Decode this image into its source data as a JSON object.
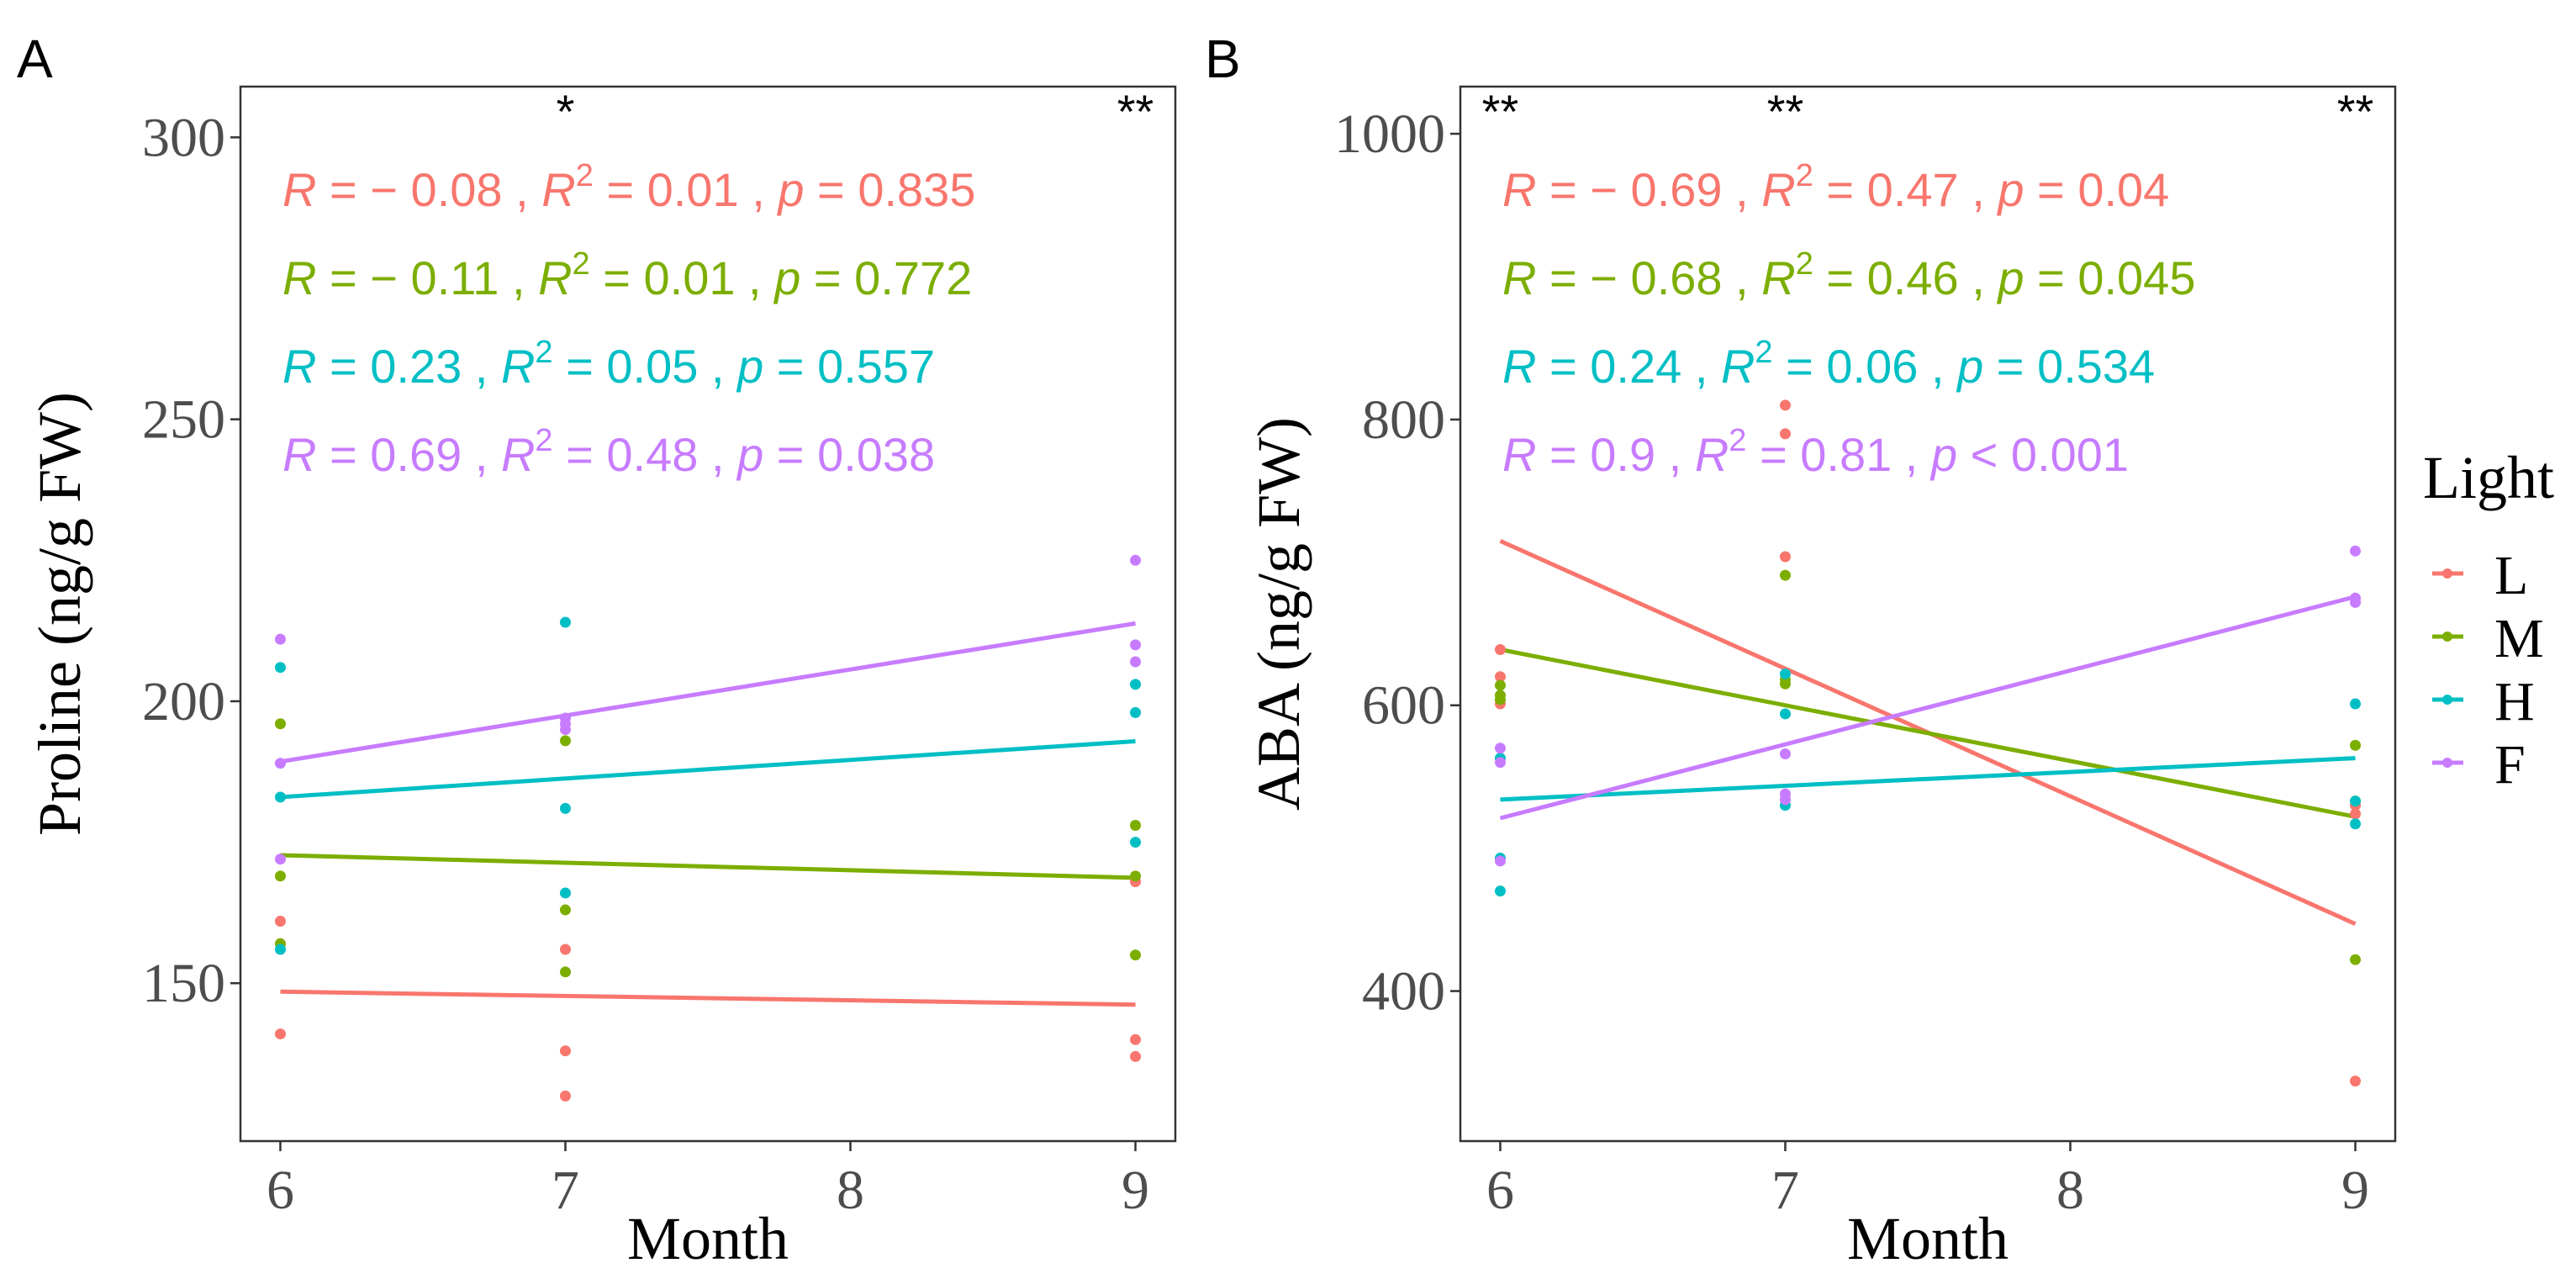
{
  "figure": {
    "legend": {
      "title": "Light",
      "items": [
        {
          "label": "L",
          "color": "#F8766D"
        },
        {
          "label": "M",
          "color": "#7CAE00"
        },
        {
          "label": "H",
          "color": "#00BFC4"
        },
        {
          "label": "F",
          "color": "#C77CFF"
        }
      ]
    }
  },
  "chart_data": [
    {
      "type": "scatter",
      "panel_label": "A",
      "xlabel": "Month",
      "ylabel": "Proline (ng/g FW)",
      "xlim": [
        5.86,
        9.14
      ],
      "ylim": [
        122,
        309
      ],
      "xticks": [
        6,
        7,
        8,
        9
      ],
      "yticks": [
        150,
        200,
        250,
        300
      ],
      "grid": false,
      "legend_position": "right",
      "significance": [
        {
          "x": 7,
          "label": "*"
        },
        {
          "x": 9,
          "label": "**"
        }
      ],
      "series": [
        {
          "name": "L",
          "color": "#F8766D",
          "points": [
            [
              6,
              161
            ],
            [
              6,
              157
            ],
            [
              6,
              141
            ],
            [
              7,
              156
            ],
            [
              7,
              138
            ],
            [
              7,
              130
            ],
            [
              9,
              168
            ],
            [
              9,
              140
            ],
            [
              9,
              137
            ]
          ],
          "fit": {
            "x": [
              6,
              9
            ],
            "y": [
              148.5,
              146.2
            ]
          },
          "stats": {
            "R": "− 0.08",
            "R2": "0.01",
            "p_op": "=",
            "p": "0.835"
          }
        },
        {
          "name": "M",
          "color": "#7CAE00",
          "points": [
            [
              6,
              196
            ],
            [
              6,
              169
            ],
            [
              6,
              157
            ],
            [
              7,
              193
            ],
            [
              7,
              163
            ],
            [
              7,
              152
            ],
            [
              9,
              178
            ],
            [
              9,
              169
            ],
            [
              9,
              155
            ]
          ],
          "fit": {
            "x": [
              6,
              9
            ],
            "y": [
              172.7,
              168.7
            ]
          },
          "stats": {
            "R": "− 0.11",
            "R2": "0.01",
            "p_op": "=",
            "p": "0.772"
          }
        },
        {
          "name": "H",
          "color": "#00BFC4",
          "points": [
            [
              6,
              206
            ],
            [
              6,
              183
            ],
            [
              6,
              156
            ],
            [
              7,
              214
            ],
            [
              7,
              181
            ],
            [
              7,
              166
            ],
            [
              9,
              203
            ],
            [
              9,
              198
            ],
            [
              9,
              175
            ]
          ],
          "fit": {
            "x": [
              6,
              9
            ],
            "y": [
              183.0,
              192.9
            ]
          },
          "stats": {
            "R": "0.23",
            "R2": "0.05",
            "p_op": "=",
            "p": "0.557"
          }
        },
        {
          "name": "F",
          "color": "#C77CFF",
          "points": [
            [
              6,
              211
            ],
            [
              6,
              189
            ],
            [
              6,
              172
            ],
            [
              7,
              197
            ],
            [
              7,
              196
            ],
            [
              7,
              195
            ],
            [
              9,
              225
            ],
            [
              9,
              210
            ],
            [
              9,
              207
            ]
          ],
          "fit": {
            "x": [
              6,
              9
            ],
            "y": [
              189.3,
              213.8
            ]
          },
          "stats": {
            "R": "0.69",
            "R2": "0.48",
            "p_op": "=",
            "p": "0.038"
          }
        }
      ]
    },
    {
      "type": "scatter",
      "panel_label": "B",
      "xlabel": "Month",
      "ylabel": "ABA (ng/g FW)",
      "xlim": [
        5.86,
        9.14
      ],
      "ylim": [
        295,
        1033
      ],
      "xticks": [
        6,
        7,
        8,
        9
      ],
      "yticks": [
        400,
        600,
        800,
        1000
      ],
      "grid": false,
      "legend_position": "right",
      "significance": [
        {
          "x": 6,
          "label": "**"
        },
        {
          "x": 7,
          "label": "**"
        },
        {
          "x": 9,
          "label": "**"
        }
      ],
      "series": [
        {
          "name": "L",
          "color": "#F8766D",
          "points": [
            [
              6,
              639
            ],
            [
              6,
              620
            ],
            [
              6,
              601
            ],
            [
              7,
              810
            ],
            [
              7,
              790
            ],
            [
              7,
              704
            ],
            [
              9,
              530
            ],
            [
              9,
              524
            ],
            [
              9,
              337
            ]
          ],
          "fit": {
            "x": [
              6,
              9
            ],
            "y": [
              715,
              447
            ]
          },
          "stats": {
            "R": "− 0.69",
            "R2": "0.47",
            "p_op": "=",
            "p": "0.04"
          }
        },
        {
          "name": "M",
          "color": "#7CAE00",
          "points": [
            [
              6,
              614
            ],
            [
              6,
              607
            ],
            [
              6,
              604
            ],
            [
              7,
              691
            ],
            [
              7,
              618
            ],
            [
              7,
              615
            ],
            [
              9,
              572
            ],
            [
              9,
              533
            ],
            [
              9,
              422
            ]
          ],
          "fit": {
            "x": [
              6,
              9
            ],
            "y": [
              639,
              522
            ]
          },
          "stats": {
            "R": "− 0.68",
            "R2": "0.46",
            "p_op": "=",
            "p": "0.045"
          }
        },
        {
          "name": "H",
          "color": "#00BFC4",
          "points": [
            [
              6,
              563
            ],
            [
              6,
              493
            ],
            [
              6,
              470
            ],
            [
              7,
              622
            ],
            [
              7,
              594
            ],
            [
              7,
              530
            ],
            [
              9,
              601
            ],
            [
              9,
              533
            ],
            [
              9,
              517
            ]
          ],
          "fit": {
            "x": [
              6,
              9
            ],
            "y": [
              534,
              563
            ]
          },
          "stats": {
            "R": "0.24",
            "R2": "0.06",
            "p_op": "=",
            "p": "0.534"
          }
        },
        {
          "name": "F",
          "color": "#C77CFF",
          "points": [
            [
              6,
              570
            ],
            [
              6,
              560
            ],
            [
              6,
              491
            ],
            [
              7,
              566
            ],
            [
              7,
              538
            ],
            [
              7,
              534
            ],
            [
              9,
              708
            ],
            [
              9,
              675
            ],
            [
              9,
              672
            ]
          ],
          "fit": {
            "x": [
              6,
              9
            ],
            "y": [
              521,
              676
            ]
          },
          "stats": {
            "R": "0.9",
            "R2": "0.81",
            "p_op": "<",
            "p": "0.001"
          }
        }
      ]
    }
  ]
}
